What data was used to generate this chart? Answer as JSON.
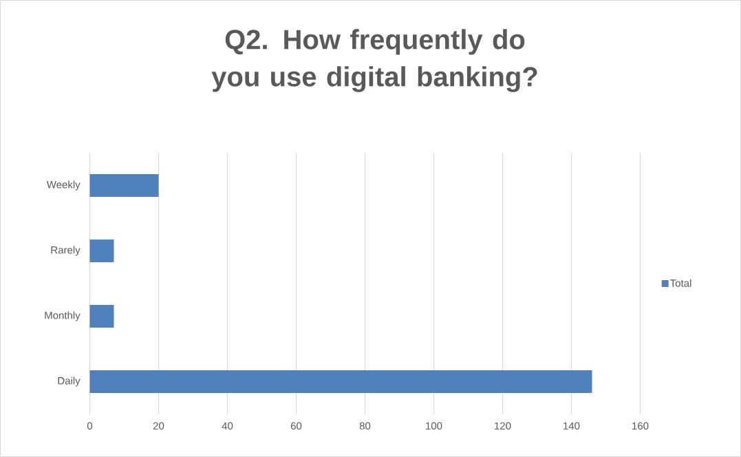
{
  "chart_data": {
    "type": "bar",
    "orientation": "horizontal",
    "title": "Q2. How frequently do you use digital banking?",
    "categories": [
      "Weekly",
      "Rarely",
      "Monthly",
      "Daily"
    ],
    "series": [
      {
        "name": "Total",
        "color": "#4f81bd",
        "values": [
          20,
          7,
          7,
          146
        ]
      }
    ],
    "xlim": [
      0,
      160
    ],
    "xticks": [
      0,
      20,
      40,
      60,
      80,
      100,
      120,
      140,
      160
    ],
    "grid": "x",
    "legend": "right"
  }
}
